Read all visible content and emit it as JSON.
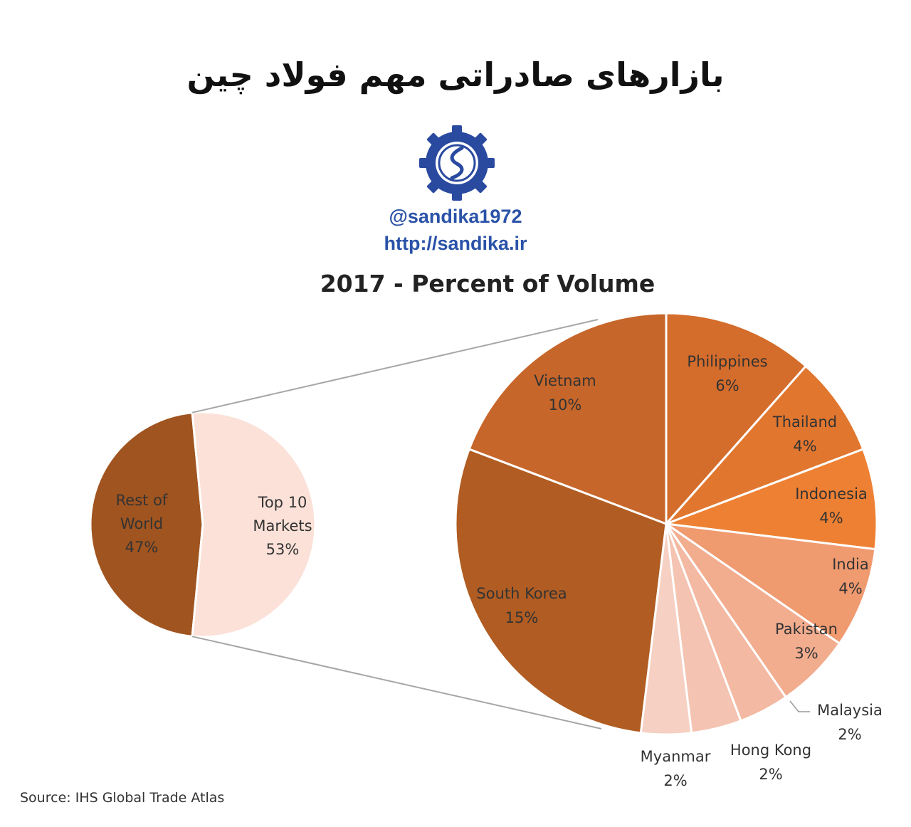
{
  "header": {
    "title": "بازارهای صادراتی مهم فولاد چین",
    "handle": "@sandika1972",
    "website": "http://sandika.ir",
    "logo_icon": "sandika-logo-icon",
    "accent_color": "#2a52a8"
  },
  "source": "Source: IHS Global Trade Atlas",
  "chart_data": [
    {
      "type": "pie",
      "title": "2017 - Percent of Volume",
      "slices": [
        {
          "label_lines": [
            "Rest of",
            "World"
          ],
          "pct_label": "47%",
          "value": 47,
          "color": "#a0541f"
        },
        {
          "label_lines": [
            "Top 10",
            "Markets"
          ],
          "pct_label": "53%",
          "value": 53,
          "color": "#fbe1d8"
        }
      ]
    },
    {
      "type": "pie",
      "slices": [
        {
          "label": "Philippines",
          "pct_label": "6%",
          "value": 6,
          "color": "#d46c2b"
        },
        {
          "label": "Thailand",
          "pct_label": "4%",
          "value": 4,
          "color": "#e1762f"
        },
        {
          "label": "Indonesia",
          "pct_label": "4%",
          "value": 4,
          "color": "#ee8033"
        },
        {
          "label": "India",
          "pct_label": "4%",
          "value": 4,
          "color": "#f09a70"
        },
        {
          "label": "Pakistan",
          "pct_label": "3%",
          "value": 3,
          "color": "#f2ad8f"
        },
        {
          "label": "Malaysia",
          "pct_label": "2%",
          "value": 2,
          "color": "#f3b9a2"
        },
        {
          "label": "Hong Kong",
          "pct_label": "2%",
          "value": 2,
          "color": "#f4c3b1"
        },
        {
          "label": "Myanmar",
          "pct_label": "2%",
          "value": 2,
          "color": "#f6d0c3"
        },
        {
          "label": "South Korea",
          "pct_label": "15%",
          "value": 15,
          "color": "#b05c22"
        },
        {
          "label": "Vietnam",
          "pct_label": "10%",
          "value": 10,
          "color": "#c7662a"
        }
      ]
    }
  ]
}
